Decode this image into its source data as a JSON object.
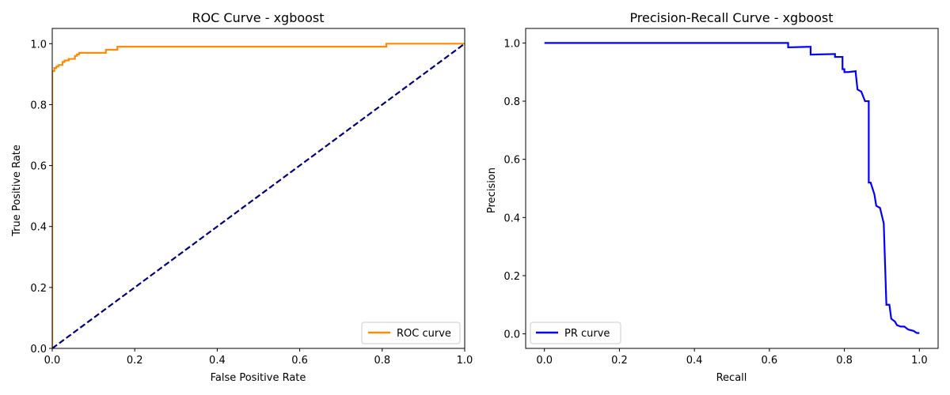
{
  "chart_data": [
    {
      "type": "line",
      "title": "ROC Curve - xgboost",
      "xlabel": "False Positive Rate",
      "ylabel": "True Positive Rate",
      "xlim": [
        0.0,
        1.0
      ],
      "ylim": [
        0.0,
        1.05
      ],
      "xticks": [
        0.0,
        0.2,
        0.4,
        0.6,
        0.8,
        1.0
      ],
      "yticks": [
        0.0,
        0.2,
        0.4,
        0.6,
        0.8,
        1.0
      ],
      "xtick_labels": [
        "0.0",
        "0.2",
        "0.4",
        "0.6",
        "0.8",
        "1.0"
      ],
      "ytick_labels": [
        "0.0",
        "0.2",
        "0.4",
        "0.6",
        "0.8",
        "1.0"
      ],
      "grid": false,
      "legend": "lower-right",
      "series": [
        {
          "name": "ROC curve",
          "color": "#ff8c00",
          "style": "solid",
          "in_legend": true,
          "x": [
            0.0,
            0.0,
            0.0,
            0.005,
            0.005,
            0.01,
            0.01,
            0.015,
            0.015,
            0.025,
            0.025,
            0.03,
            0.03,
            0.04,
            0.04,
            0.055,
            0.055,
            0.06,
            0.06,
            0.065,
            0.065,
            0.13,
            0.13,
            0.158,
            0.158,
            0.81,
            0.81,
            1.0
          ],
          "y": [
            0.0,
            0.87,
            0.91,
            0.91,
            0.92,
            0.92,
            0.925,
            0.925,
            0.93,
            0.93,
            0.94,
            0.94,
            0.945,
            0.945,
            0.95,
            0.95,
            0.96,
            0.96,
            0.965,
            0.965,
            0.97,
            0.97,
            0.98,
            0.98,
            0.99,
            0.99,
            1.0,
            1.0
          ]
        },
        {
          "name": "",
          "color": "#000080",
          "style": "dashed",
          "in_legend": false,
          "x": [
            0.0,
            1.0
          ],
          "y": [
            0.0,
            1.0
          ]
        }
      ]
    },
    {
      "type": "line",
      "title": "Precision-Recall Curve - xgboost",
      "xlabel": "Recall",
      "ylabel": "Precision",
      "xlim": [
        -0.05,
        1.05
      ],
      "ylim": [
        -0.05,
        1.05
      ],
      "xticks": [
        0.0,
        0.2,
        0.4,
        0.6,
        0.8,
        1.0
      ],
      "yticks": [
        0.0,
        0.2,
        0.4,
        0.6,
        0.8,
        1.0
      ],
      "xtick_labels": [
        "0.0",
        "0.2",
        "0.4",
        "0.6",
        "0.8",
        "1.0"
      ],
      "ytick_labels": [
        "0.0",
        "0.2",
        "0.4",
        "0.6",
        "0.8",
        "1.0"
      ],
      "grid": false,
      "legend": "lower-left",
      "series": [
        {
          "name": "PR curve",
          "color": "#0000ff",
          "style": "solid",
          "in_legend": true,
          "x": [
            0.0,
            0.65,
            0.65,
            0.71,
            0.71,
            0.775,
            0.775,
            0.795,
            0.795,
            0.8,
            0.8,
            0.81,
            0.81,
            0.83,
            0.83,
            0.835,
            0.835,
            0.845,
            0.845,
            0.855,
            0.855,
            0.865,
            0.865,
            0.87,
            0.87,
            0.88,
            0.88,
            0.885,
            0.885,
            0.895,
            0.895,
            0.905,
            0.905,
            0.912,
            0.912,
            0.92,
            0.92,
            0.925,
            0.925,
            0.935,
            0.935,
            0.94,
            0.94,
            0.95,
            0.95,
            0.96,
            0.96,
            0.97,
            0.97,
            0.985,
            0.985,
            0.993,
            0.993,
            1.0
          ],
          "y": [
            1.0,
            1.0,
            0.985,
            0.987,
            0.96,
            0.962,
            0.952,
            0.952,
            0.91,
            0.91,
            0.9,
            0.9,
            0.9,
            0.903,
            0.9,
            0.84,
            0.84,
            0.833,
            0.833,
            0.8,
            0.8,
            0.8,
            0.52,
            0.52,
            0.52,
            0.48,
            0.48,
            0.44,
            0.44,
            0.433,
            0.433,
            0.38,
            0.38,
            0.1,
            0.1,
            0.1,
            0.1,
            0.052,
            0.052,
            0.042,
            0.042,
            0.03,
            0.03,
            0.025,
            0.025,
            0.025,
            0.025,
            0.015,
            0.015,
            0.01,
            0.01,
            0.003,
            0.003,
            0.003
          ]
        }
      ]
    }
  ]
}
